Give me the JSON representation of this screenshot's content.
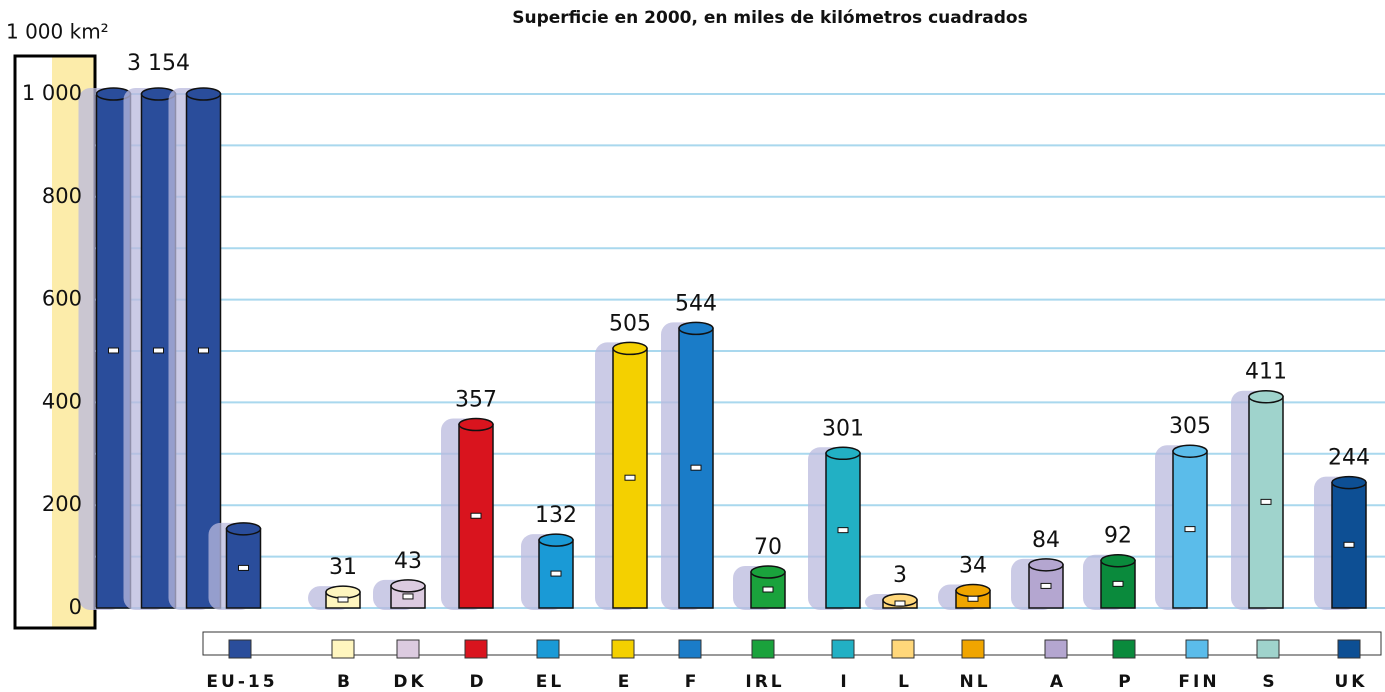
{
  "chart_data": {
    "type": "bar",
    "title": "Superficie en 2000, en miles de kilómetros cuadrados",
    "y_unit": "1 000 km²",
    "categories": [
      "EU-15",
      "B",
      "DK",
      "D",
      "EL",
      "E",
      "F",
      "IRL",
      "I",
      "L",
      "NL",
      "A",
      "P",
      "FIN",
      "S",
      "UK"
    ],
    "values": [
      3154,
      31,
      43,
      357,
      132,
      505,
      544,
      70,
      301,
      3,
      34,
      84,
      92,
      305,
      411,
      244
    ],
    "value_labels": [
      "3 154",
      "31",
      "43",
      "357",
      "132",
      "505",
      "544",
      "70",
      "301",
      "3",
      "34",
      "84",
      "92",
      "305",
      "411",
      "244"
    ],
    "colors": [
      "#2a4d9b",
      "#fff6bf",
      "#dccbe0",
      "#d9141e",
      "#1a9ad6",
      "#f4d000",
      "#1a7cc8",
      "#1aa23c",
      "#22b0c4",
      "#ffd77a",
      "#f0a500",
      "#b4a6d0",
      "#0a8a3c",
      "#5bbcea",
      "#9fd3cc",
      "#0d4f94"
    ],
    "ylim": [
      0,
      1000
    ],
    "yticks": [
      0,
      200,
      400,
      600,
      800,
      {
        "value": 1000,
        "label": "1 000"
      }
    ],
    "minor_yticks": [
      100,
      300,
      500,
      700,
      900
    ],
    "grid": true
  }
}
